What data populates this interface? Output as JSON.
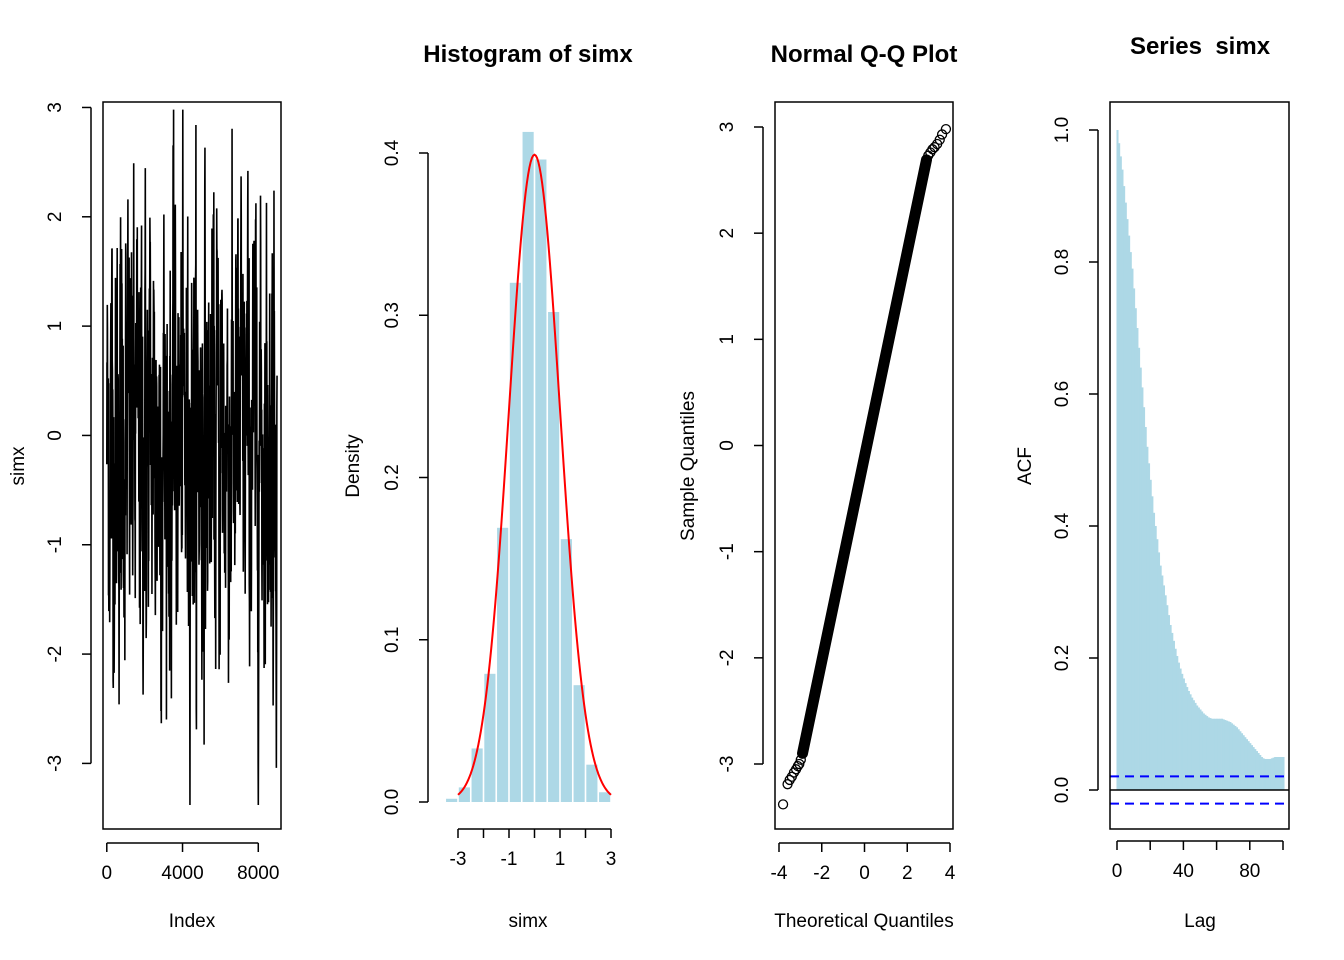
{
  "colors": {
    "bar_fill": "#add8e6",
    "density_curve": "#ff0000",
    "conf_band": "#0000ff",
    "series_line": "#000000",
    "frame": "#000000"
  },
  "chart_data": [
    {
      "type": "line",
      "title": "",
      "xlabel": "Index",
      "ylabel": "simx",
      "xlim": [
        -200,
        9200
      ],
      "ylim": [
        -3.6,
        3.05
      ],
      "x_ticks": [
        "0",
        "4000",
        "8000"
      ],
      "x_tick_values": [
        0,
        4000,
        8000
      ],
      "y_ticks": [
        "-3",
        "-2",
        "-1",
        "0",
        "1",
        "2",
        "3"
      ],
      "y_tick_values": [
        -3,
        -2,
        -1,
        0,
        1,
        2,
        3
      ],
      "series": [
        {
          "values_range": [
            -3.38,
            2.98
          ],
          "n_points": 9000,
          "color": "#000000"
        }
      ]
    },
    {
      "type": "bar",
      "title": "Histogram of simx",
      "xlabel": "simx",
      "ylabel": "Density",
      "xlim": [
        -3.2,
        3.2
      ],
      "ylim": [
        0,
        0.4
      ],
      "x_ticks": [
        "-3",
        "-1",
        "1",
        "3"
      ],
      "x_tick_values": [
        -3,
        -2,
        -1,
        0,
        1,
        2,
        3
      ],
      "y_ticks": [
        "0.0",
        "0.1",
        "0.2",
        "0.3",
        "0.4"
      ],
      "y_tick_values": [
        0,
        0.1,
        0.2,
        0.3,
        0.4
      ],
      "bin_edges": [
        -3.5,
        -3.0,
        -2.5,
        -2.0,
        -1.5,
        -1.0,
        -0.5,
        0.0,
        0.5,
        1.0,
        1.5,
        2.0,
        2.5,
        3.0
      ],
      "values": [
        0.002,
        0.009,
        0.033,
        0.079,
        0.169,
        0.32,
        0.413,
        0.396,
        0.302,
        0.162,
        0.072,
        0.023,
        0.006
      ],
      "overlay": {
        "name": "normal density",
        "mean": 0,
        "sd": 1,
        "color": "#ff0000"
      }
    },
    {
      "type": "scatter",
      "title": "Normal Q-Q Plot",
      "xlabel": "Theoretical Quantiles",
      "ylabel": "Sample Quantiles",
      "xlim": [
        -4.05,
        4.05
      ],
      "ylim": [
        -3.6,
        3.05
      ],
      "x_ticks": [
        "-4",
        "-2",
        "0",
        "2",
        "4"
      ],
      "x_tick_values": [
        -4,
        -2,
        0,
        2,
        4
      ],
      "y_ticks": [
        "-3",
        "-2",
        "-1",
        "0",
        "1",
        "2",
        "3"
      ],
      "y_tick_values": [
        -3,
        -2,
        -1,
        0,
        1,
        2,
        3
      ],
      "points": [
        [
          -3.81,
          -3.38
        ],
        [
          -3.6,
          -3.19
        ],
        [
          -3.5,
          -3.15
        ],
        [
          -3.4,
          -3.12
        ],
        [
          -3.3,
          -3.08
        ],
        [
          -3.2,
          -3.05
        ],
        [
          -3.12,
          -3.02
        ],
        [
          -3.05,
          -3.0
        ],
        [
          -2.98,
          -2.96
        ],
        [
          2.98,
          2.73
        ],
        [
          3.08,
          2.76
        ],
        [
          3.18,
          2.79
        ],
        [
          3.28,
          2.81
        ],
        [
          3.4,
          2.84
        ],
        [
          3.52,
          2.88
        ],
        [
          3.63,
          2.93
        ],
        [
          3.81,
          2.98
        ]
      ],
      "line_segment": {
        "x": [
          -2.9,
          2.9
        ],
        "y": [
          -2.9,
          2.69
        ]
      }
    },
    {
      "type": "bar",
      "title": "Series  simx",
      "xlabel": "Lag",
      "ylabel": "ACF",
      "xlim": [
        -4,
        104
      ],
      "ylim": [
        -0.06,
        1.04
      ],
      "x_ticks": [
        "0",
        "40",
        "80"
      ],
      "x_tick_values": [
        0,
        20,
        40,
        60,
        80,
        100
      ],
      "y_ticks": [
        "0.0",
        "0.2",
        "0.4",
        "0.6",
        "0.8",
        "1.0"
      ],
      "y_tick_values": [
        0,
        0.2,
        0.4,
        0.6,
        0.8,
        1.0
      ],
      "confidence_band": 0.0207,
      "values": [
        1.0,
        0.98,
        0.96,
        0.94,
        0.915,
        0.89,
        0.865,
        0.84,
        0.815,
        0.79,
        0.76,
        0.73,
        0.7,
        0.67,
        0.64,
        0.61,
        0.58,
        0.55,
        0.52,
        0.495,
        0.47,
        0.445,
        0.42,
        0.4,
        0.38,
        0.36,
        0.34,
        0.325,
        0.31,
        0.295,
        0.28,
        0.265,
        0.25,
        0.238,
        0.226,
        0.214,
        0.203,
        0.193,
        0.184,
        0.176,
        0.169,
        0.162,
        0.156,
        0.15,
        0.145,
        0.14,
        0.136,
        0.132,
        0.128,
        0.125,
        0.122,
        0.119,
        0.116,
        0.114,
        0.112,
        0.11,
        0.109,
        0.108,
        0.108,
        0.108,
        0.108,
        0.108,
        0.108,
        0.108,
        0.107,
        0.106,
        0.105,
        0.104,
        0.103,
        0.101,
        0.099,
        0.097,
        0.095,
        0.092,
        0.089,
        0.086,
        0.083,
        0.08,
        0.077,
        0.074,
        0.071,
        0.068,
        0.065,
        0.062,
        0.059,
        0.056,
        0.053,
        0.05,
        0.048,
        0.047,
        0.047,
        0.047,
        0.047,
        0.048,
        0.049,
        0.05,
        0.05,
        0.05,
        0.05,
        0.05,
        0.05
      ]
    }
  ]
}
